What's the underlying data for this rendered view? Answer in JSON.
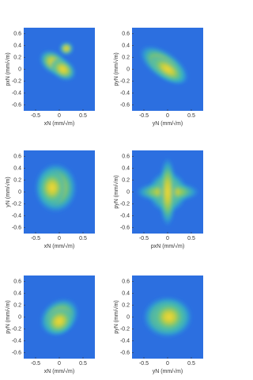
{
  "chart_data": [
    {
      "type": "heatmap",
      "xlabel": "xN (mm/√m)",
      "ylabel": "pxN (mm/√m)",
      "xlim": [
        -0.75,
        0.75
      ],
      "ylim": [
        -0.7,
        0.7
      ],
      "xticks": [
        -0.5,
        0,
        0.5
      ],
      "yticks": [
        -0.6,
        -0.4,
        -0.2,
        0,
        0.2,
        0.4,
        0.6
      ]
    },
    {
      "type": "heatmap",
      "xlabel": "yN (mm/√m)",
      "ylabel": "pyN (mm/√m)",
      "xlim": [
        -0.75,
        0.75
      ],
      "ylim": [
        -0.7,
        0.7
      ],
      "xticks": [
        -0.5,
        0,
        0.5
      ],
      "yticks": [
        -0.6,
        -0.4,
        -0.2,
        0,
        0.2,
        0.4,
        0.6
      ]
    },
    {
      "type": "heatmap",
      "xlabel": "xN (mm/√m)",
      "ylabel": "yN (mm/√m)",
      "xlim": [
        -0.75,
        0.75
      ],
      "ylim": [
        -0.7,
        0.7
      ],
      "xticks": [
        -0.5,
        0,
        0.5
      ],
      "yticks": [
        -0.6,
        -0.4,
        -0.2,
        0,
        0.2,
        0.4,
        0.6
      ]
    },
    {
      "type": "heatmap",
      "xlabel": "pxN (mm/√m)",
      "ylabel": "pyN (mm/√m)",
      "xlim": [
        -0.75,
        0.75
      ],
      "ylim": [
        -0.7,
        0.7
      ],
      "xticks": [
        -0.5,
        0,
        0.5
      ],
      "yticks": [
        -0.6,
        -0.4,
        -0.2,
        0,
        0.2,
        0.4,
        0.6
      ]
    },
    {
      "type": "heatmap",
      "xlabel": "xN (mm/√m)",
      "ylabel": "pyN (mm/√m)",
      "xlim": [
        -0.75,
        0.75
      ],
      "ylim": [
        -0.7,
        0.7
      ],
      "xticks": [
        -0.5,
        0,
        0.5
      ],
      "yticks": [
        -0.6,
        -0.4,
        -0.2,
        0,
        0.2,
        0.4,
        0.6
      ]
    },
    {
      "type": "heatmap",
      "xlabel": "yN (mm/√m)",
      "ylabel": "pyN (mm/√m)",
      "xlim": [
        -0.75,
        0.75
      ],
      "ylim": [
        -0.7,
        0.7
      ],
      "xticks": [
        -0.5,
        0,
        0.5
      ],
      "yticks": [
        -0.6,
        -0.4,
        -0.2,
        0,
        0.2,
        0.4,
        0.6
      ]
    }
  ]
}
